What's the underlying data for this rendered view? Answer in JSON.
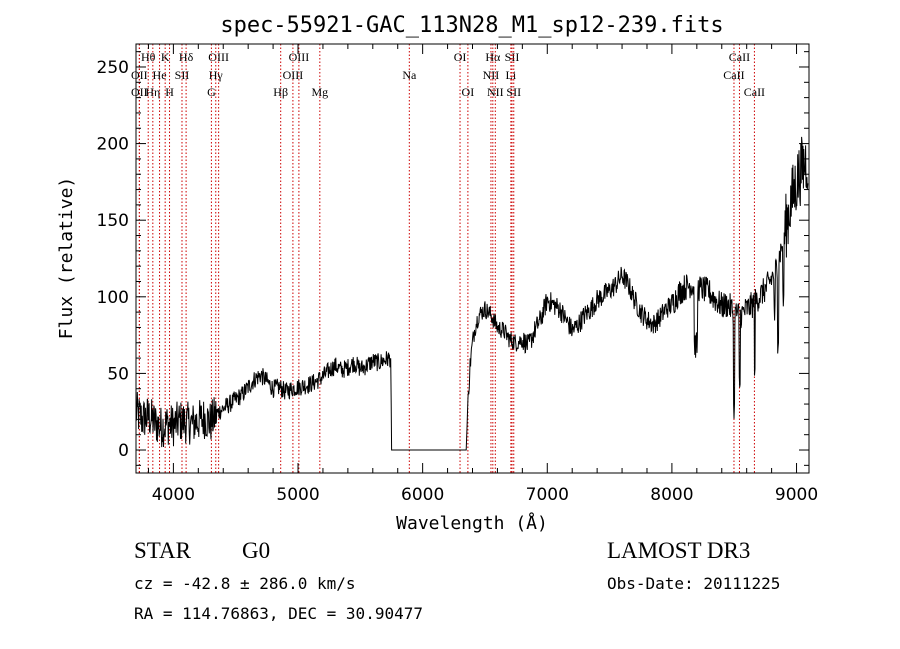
{
  "chart_data": {
    "type": "line",
    "title": "spec-55921-GAC_113N28_M1_sp12-239.fits",
    "xlabel": "Wavelength (Å)",
    "ylabel": "Flux (relative)",
    "xlim": [
      3700,
      9100
    ],
    "ylim": [
      -15,
      265
    ],
    "x_ticks": [
      4000,
      5000,
      6000,
      7000,
      8000,
      9000
    ],
    "y_ticks": [
      0,
      50,
      100,
      150,
      200,
      250
    ],
    "x_tick_labels": [
      "4000",
      "5000",
      "6000",
      "7000",
      "8000",
      "9000"
    ],
    "y_tick_labels": [
      "0",
      "50",
      "100",
      "150",
      "200",
      "250"
    ],
    "line_color": "#000000",
    "marker_color": "#cc0000",
    "series": [
      {
        "name": "flux",
        "anchors": [
          [
            3700,
            25
          ],
          [
            3750,
            20
          ],
          [
            3800,
            22
          ],
          [
            3850,
            18
          ],
          [
            3900,
            15
          ],
          [
            3950,
            17
          ],
          [
            4000,
            16
          ],
          [
            4050,
            19
          ],
          [
            4100,
            18
          ],
          [
            4150,
            17
          ],
          [
            4200,
            19
          ],
          [
            4250,
            21
          ],
          [
            4300,
            18
          ],
          [
            4350,
            24
          ],
          [
            4400,
            27
          ],
          [
            4450,
            30
          ],
          [
            4500,
            33
          ],
          [
            4550,
            36
          ],
          [
            4600,
            41
          ],
          [
            4650,
            46
          ],
          [
            4700,
            49
          ],
          [
            4750,
            45
          ],
          [
            4800,
            40
          ],
          [
            4850,
            41
          ],
          [
            4900,
            38
          ],
          [
            4950,
            40
          ],
          [
            5000,
            41
          ],
          [
            5050,
            42
          ],
          [
            5100,
            43
          ],
          [
            5150,
            45
          ],
          [
            5200,
            48
          ],
          [
            5250,
            52
          ],
          [
            5300,
            55
          ],
          [
            5350,
            52
          ],
          [
            5400,
            54
          ],
          [
            5450,
            57
          ],
          [
            5500,
            53
          ],
          [
            5550,
            55
          ],
          [
            5600,
            58
          ],
          [
            5650,
            57
          ],
          [
            5700,
            59
          ],
          [
            5745,
            60
          ],
          [
            5750,
            0
          ],
          [
            6350,
            0
          ],
          [
            6360,
            25
          ],
          [
            6380,
            55
          ],
          [
            6400,
            70
          ],
          [
            6420,
            80
          ],
          [
            6450,
            88
          ],
          [
            6500,
            92
          ],
          [
            6550,
            88
          ],
          [
            6600,
            80
          ],
          [
            6650,
            78
          ],
          [
            6700,
            72
          ],
          [
            6750,
            70
          ],
          [
            6800,
            72
          ],
          [
            6850,
            68
          ],
          [
            6900,
            78
          ],
          [
            6950,
            86
          ],
          [
            7000,
            98
          ],
          [
            7050,
            95
          ],
          [
            7100,
            92
          ],
          [
            7150,
            85
          ],
          [
            7200,
            78
          ],
          [
            7250,
            82
          ],
          [
            7300,
            88
          ],
          [
            7350,
            92
          ],
          [
            7400,
            98
          ],
          [
            7450,
            101
          ],
          [
            7500,
            104
          ],
          [
            7550,
            108
          ],
          [
            7600,
            114
          ],
          [
            7650,
            108
          ],
          [
            7700,
            98
          ],
          [
            7750,
            90
          ],
          [
            7800,
            85
          ],
          [
            7850,
            82
          ],
          [
            7900,
            86
          ],
          [
            7950,
            92
          ],
          [
            8000,
            95
          ],
          [
            8050,
            102
          ],
          [
            8100,
            106
          ],
          [
            8150,
            108
          ],
          [
            8200,
            106
          ],
          [
            8250,
            105
          ],
          [
            8300,
            103
          ],
          [
            8350,
            98
          ],
          [
            8400,
            94
          ],
          [
            8450,
            95
          ],
          [
            8500,
            90
          ],
          [
            8550,
            88
          ],
          [
            8600,
            92
          ],
          [
            8650,
            95
          ],
          [
            8700,
            100
          ],
          [
            8750,
            105
          ],
          [
            8800,
            112
          ],
          [
            8850,
            122
          ],
          [
            8900,
            140
          ],
          [
            8950,
            160
          ],
          [
            9000,
            175
          ],
          [
            9050,
            185
          ],
          [
            9090,
            190
          ]
        ],
        "noise_regions": [
          [
            3700,
            4350,
            14
          ],
          [
            4350,
            5750,
            6
          ],
          [
            6360,
            6800,
            6
          ],
          [
            6800,
            8000,
            7
          ],
          [
            8000,
            8900,
            9
          ],
          [
            8900,
            9100,
            22
          ]
        ],
        "absorption_spikes": [
          [
            8180,
            8205,
            -38
          ],
          [
            8495,
            8505,
            -65
          ],
          [
            8540,
            8548,
            -45
          ],
          [
            8662,
            8668,
            -40
          ],
          [
            8820,
            8830,
            -30
          ],
          [
            8848,
            8856,
            -50
          ],
          [
            8890,
            8900,
            -40
          ]
        ]
      }
    ],
    "line_markers": [
      {
        "label": "Hθ",
        "x": 3798,
        "row": 0
      },
      {
        "label": "OII",
        "x": 3727,
        "row": 1
      },
      {
        "label": "OII",
        "x": 3727,
        "row": 2
      },
      {
        "label": "Hη",
        "x": 3835,
        "row": 2
      },
      {
        "label": "He",
        "x": 3889,
        "row": 1
      },
      {
        "label": "K",
        "x": 3934,
        "row": 0
      },
      {
        "label": "H",
        "x": 3969,
        "row": 2
      },
      {
        "label": "SII",
        "x": 4069,
        "row": 1
      },
      {
        "label": "Hδ",
        "x": 4102,
        "row": 0
      },
      {
        "label": "OIII",
        "x": 4363,
        "row": 0
      },
      {
        "label": "Hγ",
        "x": 4340,
        "row": 1
      },
      {
        "label": "G",
        "x": 4305,
        "row": 2
      },
      {
        "label": "Hβ",
        "x": 4861,
        "row": 2
      },
      {
        "label": "OIII",
        "x": 5007,
        "row": 0
      },
      {
        "label": "OIII",
        "x": 4959,
        "row": 1
      },
      {
        "label": "Mg",
        "x": 5175,
        "row": 2
      },
      {
        "label": "Na",
        "x": 5893,
        "row": 1
      },
      {
        "label": "OI",
        "x": 6300,
        "row": 0
      },
      {
        "label": "OI",
        "x": 6363,
        "row": 2
      },
      {
        "label": "Hα",
        "x": 6563,
        "row": 0
      },
      {
        "label": "NII",
        "x": 6548,
        "row": 1
      },
      {
        "label": "NII",
        "x": 6583,
        "row": 2
      },
      {
        "label": "SII",
        "x": 6717,
        "row": 0
      },
      {
        "label": "Li",
        "x": 6708,
        "row": 1
      },
      {
        "label": "SII",
        "x": 6731,
        "row": 2
      },
      {
        "label": "CaII",
        "x": 8542,
        "row": 0
      },
      {
        "label": "CaII",
        "x": 8498,
        "row": 1
      },
      {
        "label": "CaII",
        "x": 8662,
        "row": 2
      }
    ]
  },
  "info": {
    "object_class": "STAR",
    "subclass": "G0",
    "survey": "LAMOST DR3",
    "cz": "cz = -42.8 ± 286.0 km/s",
    "obs_date": "Obs-Date: 20111225",
    "coords": "RA = 114.76863, DEC =  30.90477"
  }
}
